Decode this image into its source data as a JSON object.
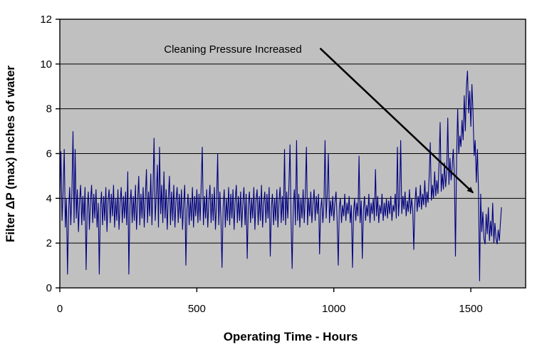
{
  "chart_data": {
    "type": "line",
    "title": "",
    "xlabel": "Operating Time - Hours",
    "ylabel": "Filter ΔP (max) Inches of water",
    "xlim": [
      0,
      1700
    ],
    "ylim": [
      0,
      12
    ],
    "xticks": [
      0,
      500,
      1000,
      1500
    ],
    "yticks": [
      0,
      2,
      4,
      6,
      8,
      10,
      12
    ],
    "grid": "horizontal-only",
    "legend": "none",
    "colors": {
      "plot_background": "#c0c0c0",
      "gridline": "#000000",
      "axis": "#000000",
      "series_line": "#000080",
      "annotation_arrow": "#000000",
      "page_background": "#ffffff"
    },
    "annotation": {
      "text": "Cleaning Pressure Increased",
      "arrow_from": [
        950,
        10.7
      ],
      "arrow_to": [
        1508,
        4.25
      ]
    },
    "series": [
      {
        "name": "Filter dP (max)",
        "color": "#000080",
        "x_start": 0,
        "x_step_hours": 4,
        "y": [
          3.8,
          6.1,
          3.0,
          4.3,
          6.2,
          2.7,
          4.0,
          0.6,
          3.4,
          4.5,
          2.8,
          4.2,
          7.0,
          2.9,
          6.2,
          3.1,
          4.4,
          2.5,
          3.9,
          4.6,
          2.8,
          4.1,
          3.0,
          4.5,
          0.8,
          3.6,
          4.3,
          2.6,
          3.9,
          4.6,
          2.9,
          4.2,
          3.1,
          4.4,
          2.7,
          3.8,
          0.6,
          3.5,
          4.3,
          2.8,
          4.1,
          3.0,
          4.5,
          2.5,
          3.9,
          4.4,
          2.9,
          4.2,
          3.2,
          4.6,
          2.7,
          4.0,
          3.0,
          4.4,
          2.6,
          3.8,
          4.5,
          2.9,
          4.1,
          3.1,
          4.3,
          2.8,
          5.2,
          0.6,
          3.7,
          4.4,
          2.9,
          4.1,
          3.0,
          4.6,
          2.6,
          3.9,
          5.0,
          2.8,
          4.2,
          3.1,
          4.5,
          2.7,
          4.0,
          5.3,
          2.9,
          4.3,
          3.2,
          5.1,
          2.8,
          4.4,
          6.7,
          3.0,
          4.1,
          5.5,
          2.7,
          6.3,
          3.3,
          4.6,
          2.9,
          5.2,
          3.1,
          4.4,
          2.6,
          4.0,
          5.0,
          2.8,
          4.3,
          3.0,
          4.6,
          2.7,
          3.9,
          4.5,
          2.9,
          4.2,
          3.1,
          4.4,
          2.6,
          3.8,
          4.6,
          1.0,
          3.5,
          4.2,
          2.8,
          4.0,
          3.0,
          4.5,
          2.7,
          4.1,
          3.2,
          4.4,
          2.9,
          4.2,
          3.0,
          4.6,
          6.3,
          2.8,
          4.1,
          3.1,
          4.4,
          2.7,
          3.9,
          4.6,
          2.9,
          4.2,
          3.0,
          4.5,
          2.6,
          3.8,
          6.0,
          2.8,
          4.3,
          3.1,
          0.9,
          3.6,
          4.4,
          2.7,
          4.0,
          3.0,
          4.5,
          2.8,
          4.2,
          3.1,
          4.4,
          2.6,
          3.9,
          4.6,
          2.9,
          4.1,
          3.0,
          4.3,
          2.7,
          3.8,
          4.5,
          2.8,
          4.2,
          1.3,
          3.7,
          4.3,
          2.9,
          4.0,
          3.1,
          4.5,
          2.6,
          3.9,
          4.4,
          2.8,
          4.1,
          3.0,
          4.6,
          2.7,
          3.8,
          4.3,
          2.9,
          4.2,
          3.1,
          4.5,
          1.4,
          3.6,
          4.2,
          2.8,
          4.0,
          3.0,
          4.4,
          2.7,
          3.9,
          4.5,
          2.9,
          4.1,
          3.0,
          6.2,
          2.8,
          4.3,
          3.1,
          4.5,
          6.4,
          2.9,
          0.85,
          3.7,
          4.4,
          2.8,
          6.6,
          3.0,
          4.2,
          2.7,
          4.0,
          3.1,
          4.4,
          2.9,
          4.2,
          6.3,
          2.8,
          4.0,
          3.2,
          4.3,
          2.9,
          3.8,
          4.4,
          3.0,
          4.1,
          3.3,
          4.2,
          1.5,
          3.5,
          4.0,
          2.9,
          3.8,
          6.6,
          3.1,
          4.2,
          6.0,
          2.9,
          3.9,
          3.2,
          4.1,
          3.0,
          3.8,
          4.3,
          3.1,
          1.0,
          3.6,
          4.0,
          2.9,
          3.7,
          3.2,
          4.2,
          3.0,
          3.8,
          3.3,
          4.1,
          2.9,
          3.7,
          0.9,
          3.4,
          4.0,
          3.0,
          3.8,
          3.2,
          5.9,
          2.9,
          3.9,
          1.3,
          3.5,
          4.1,
          3.0,
          3.7,
          3.2,
          4.2,
          2.9,
          3.8,
          3.3,
          4.0,
          3.0,
          5.3,
          3.2,
          4.1,
          2.9,
          3.7,
          3.3,
          4.2,
          3.0,
          3.8,
          3.2,
          4.0,
          3.1,
          3.9,
          3.3,
          4.1,
          3.0,
          3.7,
          3.4,
          4.2,
          3.1,
          6.3,
          3.2,
          4.0,
          6.6,
          3.3,
          4.1,
          3.5,
          4.3,
          3.2,
          3.9,
          3.4,
          4.4,
          3.3,
          4.0,
          3.5,
          1.7,
          3.8,
          4.5,
          3.4,
          4.1,
          3.6,
          4.6,
          3.5,
          4.2,
          3.7,
          4.8,
          3.6,
          4.3,
          3.8,
          5.0,
          6.5,
          3.9,
          4.6,
          4.0,
          5.2,
          4.1,
          4.8,
          4.2,
          5.5,
          7.4,
          4.3,
          5.1,
          4.4,
          5.6,
          4.5,
          5.2,
          7.6,
          4.6,
          5.8,
          4.8,
          5.4,
          6.2,
          5.0,
          1.4,
          5.8,
          8.0,
          6.0,
          6.8,
          6.3,
          7.5,
          6.6,
          8.6,
          7.0,
          9.0,
          9.7,
          7.8,
          8.8,
          7.2,
          9.1,
          7.9,
          5.9,
          6.6,
          4.7,
          6.2,
          4.4,
          0.3,
          4.2,
          2.5,
          3.4,
          2.2,
          1.95,
          3.3,
          2.4,
          3.6,
          2.1,
          3.0,
          2.3,
          3.8,
          2.0,
          2.9,
          2.2,
          1.95,
          2.6,
          2.1,
          2.9,
          3.6
        ]
      }
    ]
  }
}
